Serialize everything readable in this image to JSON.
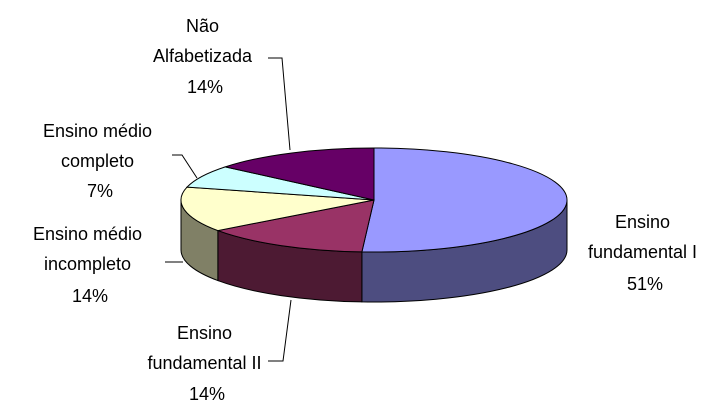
{
  "chart_data": {
    "type": "pie",
    "style": "3d",
    "title": "",
    "slices": [
      {
        "label": "Ensino fundamental I",
        "label_lines": [
          "Ensino",
          "fundamental I"
        ],
        "value_text": "51%",
        "value": 51,
        "color": "#9999ff"
      },
      {
        "label": "Ensino fundamental II",
        "label_lines": [
          "Ensino",
          "fundamental II"
        ],
        "value_text": "14%",
        "value": 14,
        "color": "#993366"
      },
      {
        "label": "Ensino médio incompleto",
        "label_lines": [
          "Ensino médio",
          "incompleto"
        ],
        "value_text": "14%",
        "value": 14,
        "color": "#ffffcc"
      },
      {
        "label": "Ensino médio completo",
        "label_lines": [
          "Ensino médio",
          "completo"
        ],
        "value_text": "7%",
        "value": 7,
        "color": "#ccffff"
      },
      {
        "label": "Não Alfabetizada",
        "label_lines": [
          "Não",
          "Alfabetizada"
        ],
        "value_text": "14%",
        "value": 14,
        "color": "#660066"
      }
    ]
  }
}
